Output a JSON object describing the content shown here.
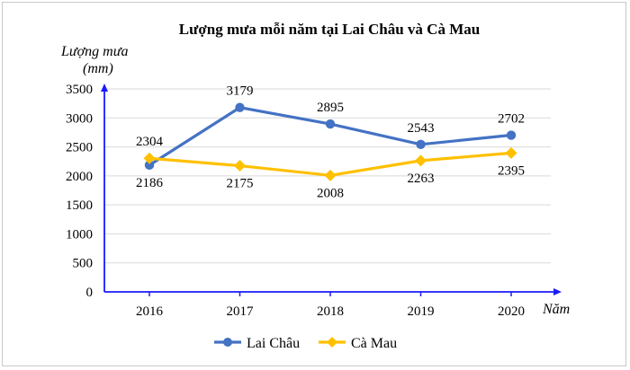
{
  "chart_data": {
    "type": "line",
    "title": "Lượng mưa mỗi năm tại Lai Châu và Cà Mau",
    "ylabel_line1": "Lượng mưa",
    "ylabel_line2": "(mm)",
    "xlabel": "Năm",
    "categories": [
      "2016",
      "2017",
      "2018",
      "2019",
      "2020"
    ],
    "ylim": [
      0,
      3500
    ],
    "yticks": [
      0,
      500,
      1000,
      1500,
      2000,
      2500,
      3000,
      3500
    ],
    "grid": true,
    "legend_position": "bottom",
    "series": [
      {
        "name": "Lai Châu",
        "color": "#4472c4",
        "marker": "circle",
        "values": [
          2186,
          3179,
          2895,
          2543,
          2702
        ]
      },
      {
        "name": "Cà Mau",
        "color": "#ffc000",
        "marker": "diamond",
        "values": [
          2304,
          2175,
          2008,
          2263,
          2395
        ]
      }
    ],
    "axis_color": "#1a1aff"
  }
}
